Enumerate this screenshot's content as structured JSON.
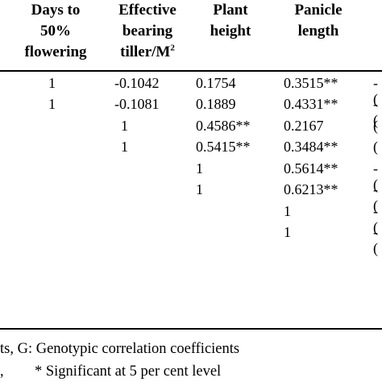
{
  "headers": {
    "days_to_flowering": [
      "Days to",
      "50%",
      "flowering"
    ],
    "effective_tiller": [
      "Effective",
      "bearing",
      "tiller/M"
    ],
    "effective_tiller_sup": "2",
    "plant_height": [
      "Plant",
      "height"
    ],
    "panicle_length": [
      "Panicle",
      "length"
    ]
  },
  "rows": [
    {
      "days": "1",
      "tiller": "-0.1042",
      "height": "0.1754",
      "panicle": "0.3515**",
      "edge": "-("
    },
    {
      "days": "1",
      "tiller": "-0.1081",
      "height": "0.1889",
      "panicle": "0.4331**",
      "edge": "-("
    },
    {
      "tiller": "1",
      "height": "0.4586**",
      "panicle": "0.2167",
      "edge": "("
    },
    {
      "tiller": "1",
      "height": "0.5415**",
      "panicle": "0.3484**",
      "edge": "("
    },
    {
      "height": "1",
      "panicle": "0.5614**",
      "edge": "-("
    },
    {
      "height": "1",
      "panicle": "0.6213**",
      "edge": "-("
    },
    {
      "panicle": "1",
      "edge": "-("
    },
    {
      "panicle": "1",
      "edge": "-("
    }
  ],
  "footnotes": {
    "line1": "ts, G: Genotypic correlation coefficients",
    "line2_comma": ",",
    "line2_sig": "* Significant at 5 per cent level"
  }
}
